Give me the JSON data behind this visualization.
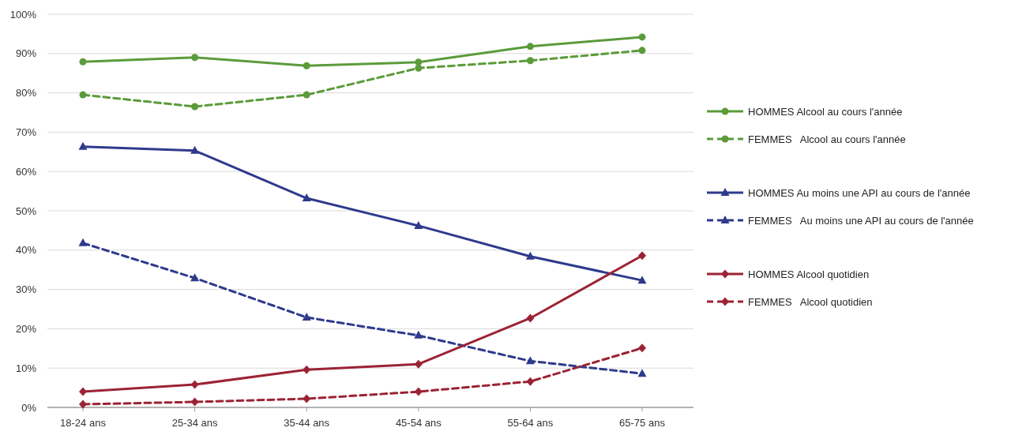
{
  "chart_data": {
    "type": "line",
    "categories": [
      "18-24 ans",
      "25-34 ans",
      "35-44 ans",
      "45-54 ans",
      "55-64 ans",
      "65-75 ans"
    ],
    "ylim": [
      0,
      100
    ],
    "yticks": [
      {
        "value": 0,
        "label": "0%"
      },
      {
        "value": 10,
        "label": "10%"
      },
      {
        "value": 20,
        "label": "20%"
      },
      {
        "value": 30,
        "label": "30%"
      },
      {
        "value": 40,
        "label": "40%"
      },
      {
        "value": 50,
        "label": "50%"
      },
      {
        "value": 60,
        "label": "60%"
      },
      {
        "value": 70,
        "label": "70%"
      },
      {
        "value": 80,
        "label": "80%"
      },
      {
        "value": 90,
        "label": "90%"
      },
      {
        "value": 100,
        "label": "100%"
      }
    ],
    "grid": "y",
    "legend": "right",
    "series": [
      {
        "name": "HOMMES Alcool au cours l'année",
        "color": "#5b9b3a",
        "marker": "circle",
        "line_style": "solid",
        "values": [
          87.9,
          89.0,
          86.9,
          87.8,
          91.8,
          94.2
        ]
      },
      {
        "name": "FEMMES   Alcool au cours l'année",
        "color": "#5b9b3a",
        "marker": "circle",
        "line_style": "dashed",
        "values": [
          79.5,
          76.5,
          79.5,
          86.3,
          88.2,
          90.8
        ]
      },
      {
        "name": "HOMMES Au moins une API au cours de l'année",
        "color": "#2e3a8c",
        "marker": "triangle",
        "line_style": "solid",
        "values": [
          66.3,
          65.3,
          53.2,
          46.2,
          38.4,
          32.3
        ]
      },
      {
        "name": "FEMMES   Au moins une API au cours de l'année",
        "color": "#2e3a8c",
        "marker": "triangle",
        "line_style": "dashed",
        "values": [
          41.8,
          32.9,
          22.9,
          18.3,
          11.8,
          8.6
        ]
      },
      {
        "name": "HOMMES Alcool quotidien",
        "color": "#9b2335",
        "marker": "diamond",
        "line_style": "solid",
        "values": [
          4.0,
          5.8,
          9.6,
          11.0,
          22.7,
          38.6
        ]
      },
      {
        "name": "FEMMES   Alcool quotidien",
        "color": "#9b2335",
        "marker": "diamond",
        "line_style": "dashed",
        "values": [
          0.8,
          1.4,
          2.2,
          4.0,
          6.6,
          15.1
        ]
      }
    ]
  }
}
